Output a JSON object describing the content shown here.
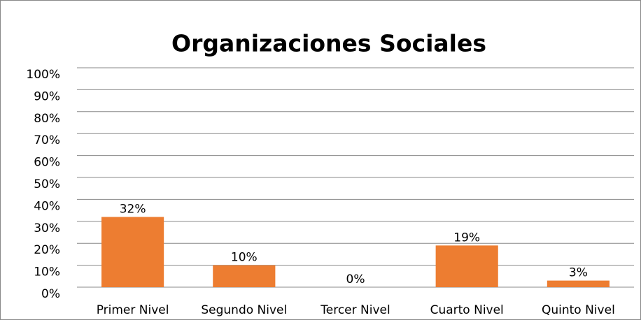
{
  "chart_data": {
    "type": "bar",
    "title": "Organizaciones Sociales",
    "categories": [
      "Primer Nivel",
      "Segundo Nivel",
      "Tercer Nivel",
      "Cuarto Nivel",
      "Quinto Nivel"
    ],
    "values": [
      32,
      10,
      0,
      19,
      3
    ],
    "value_labels": [
      "32%",
      "10%",
      "0%",
      "19%",
      "3%"
    ],
    "color": "#ed7d31",
    "ylim": [
      0,
      100
    ],
    "yticks": [
      {
        "value": 0,
        "label": "0%"
      },
      {
        "value": 10,
        "label": "10%"
      },
      {
        "value": 20,
        "label": "20%"
      },
      {
        "value": 30,
        "label": "30%"
      },
      {
        "value": 40,
        "label": "40%"
      },
      {
        "value": 50,
        "label": "50%"
      },
      {
        "value": 60,
        "label": "60%"
      },
      {
        "value": 70,
        "label": "70%"
      },
      {
        "value": 80,
        "label": "80%"
      },
      {
        "value": 90,
        "label": "90%"
      },
      {
        "value": 100,
        "label": "100%"
      }
    ],
    "grid": true
  }
}
